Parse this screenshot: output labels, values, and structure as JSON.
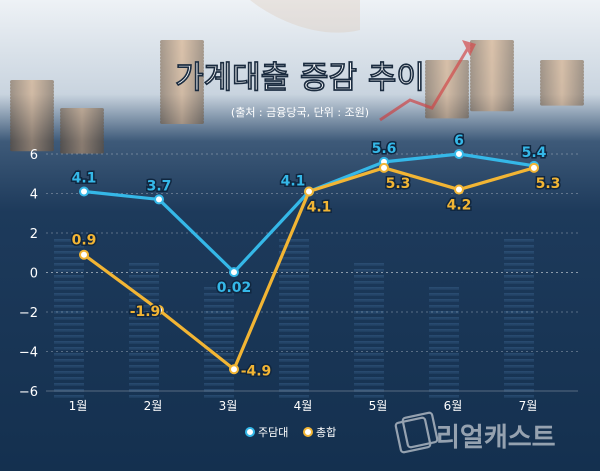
{
  "header": {
    "title": "가계대출 증감 추이",
    "subtitle": "(출처 : 금융당국, 단위 : 조원)"
  },
  "watermark": {
    "brand": "리얼캐스트"
  },
  "colors": {
    "series_main": "#35b8e8",
    "series_total": "#f2b534",
    "background_top": "#e9eef3",
    "background_bottom": "#163454",
    "axis_text": "#ffffff"
  },
  "chart_data": {
    "type": "line",
    "categories": [
      "1월",
      "2월",
      "3월",
      "4월",
      "5월",
      "6월",
      "7월"
    ],
    "y_ticks": [
      "6",
      "4",
      "2",
      "0",
      "−2",
      "−4",
      "−6"
    ],
    "ylim": [
      -6,
      6
    ],
    "grid": true,
    "legend_position": "bottom-center",
    "series": [
      {
        "name": "주담대",
        "values": [
          4.1,
          3.7,
          0.02,
          4.1,
          5.6,
          6,
          5.4
        ],
        "labels": [
          "4.1",
          "3.7",
          "0.02",
          "4.1",
          "5.6",
          "6",
          "5.4"
        ]
      },
      {
        "name": "총합",
        "values": [
          0.9,
          -1.9,
          -4.9,
          4.1,
          5.3,
          4.2,
          5.3
        ],
        "labels": [
          "0.9",
          "-1.9",
          "-4.9",
          "4.1",
          "5.3",
          "4.2",
          "5.3"
        ]
      }
    ]
  }
}
